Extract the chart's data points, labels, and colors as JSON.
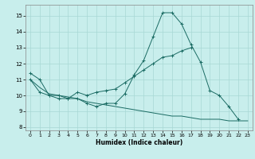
{
  "xlabel": "Humidex (Indice chaleur)",
  "xlim": [
    -0.5,
    23.5
  ],
  "ylim": [
    7.8,
    15.7
  ],
  "yticks": [
    8,
    9,
    10,
    11,
    12,
    13,
    14,
    15
  ],
  "xticks": [
    0,
    1,
    2,
    3,
    4,
    5,
    6,
    7,
    8,
    9,
    10,
    11,
    12,
    13,
    14,
    15,
    16,
    17,
    18,
    19,
    20,
    21,
    22,
    23
  ],
  "bg_color": "#c8eeec",
  "grid_color": "#a8d8d4",
  "line_color": "#1a6b63",
  "line1_y": [
    11.4,
    11.0,
    10.0,
    9.8,
    9.8,
    9.8,
    9.5,
    9.3,
    9.5,
    9.5,
    10.1,
    11.3,
    12.2,
    13.7,
    15.2,
    15.2,
    14.5,
    13.2,
    12.1,
    10.3,
    10.0,
    9.3,
    8.5,
    null
  ],
  "line2_y": [
    11.0,
    10.2,
    10.0,
    10.0,
    9.8,
    10.2,
    10.0,
    10.2,
    10.3,
    10.4,
    10.8,
    11.2,
    11.6,
    12.0,
    12.4,
    12.5,
    12.8,
    13.0,
    null,
    null,
    null,
    null,
    null,
    null
  ],
  "line3_y": [
    11.0,
    10.5,
    10.1,
    10.0,
    9.9,
    9.8,
    9.6,
    9.5,
    9.4,
    9.3,
    9.2,
    9.1,
    9.0,
    8.9,
    8.8,
    8.7,
    8.7,
    8.6,
    8.5,
    8.5,
    8.5,
    8.4,
    8.4,
    8.4
  ]
}
